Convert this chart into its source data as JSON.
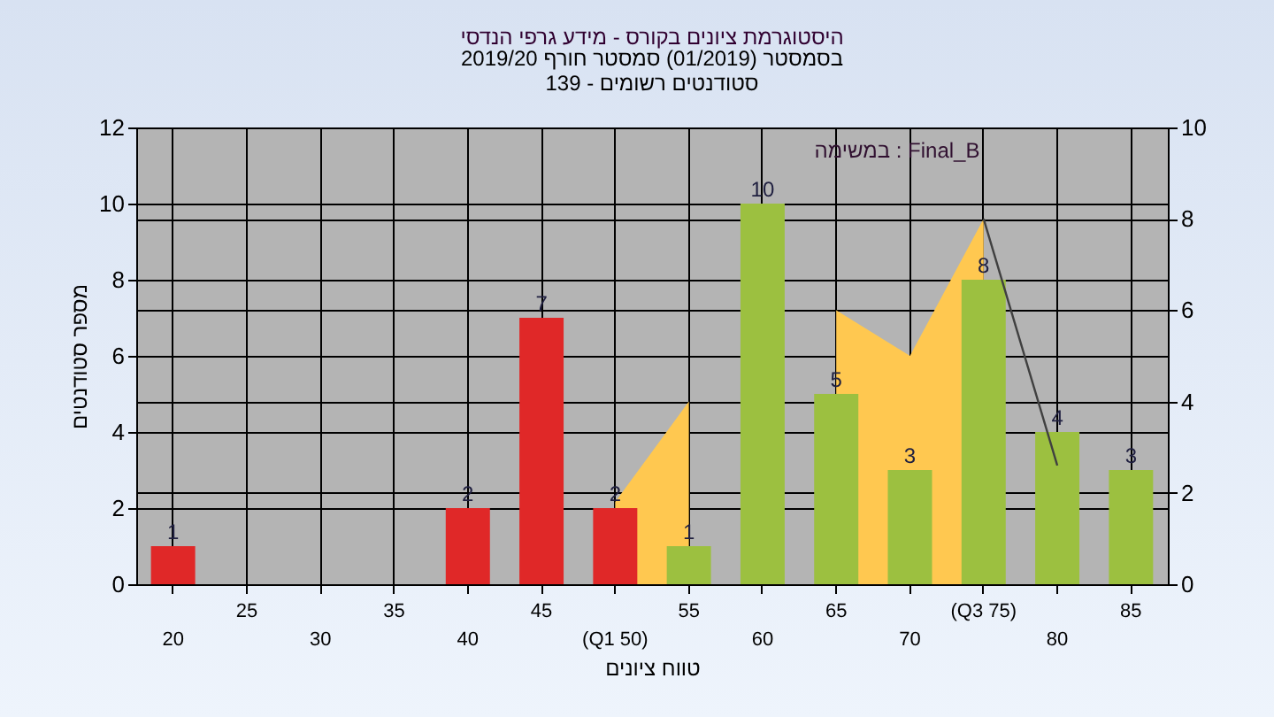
{
  "chart_data": {
    "type": "bar",
    "title": "היסטוגרמת ציונים בקורס - מידע גרפי הנדסי",
    "subtitle": "בסמסטר  (01/2019)  סמסטר חורף 2019/20\nסטודנטים רשומים - 139",
    "xlabel": "טווח ציונים",
    "ylabel": "מספר סטודנטים",
    "annotations": [
      "במשימה : Final_B"
    ],
    "categories": [
      "20",
      "25",
      "30",
      "35",
      "40",
      "45",
      "(Q1 50)",
      "55",
      "60",
      "65",
      "70",
      "(Q3 75)",
      "80",
      "85"
    ],
    "series": [
      {
        "type": "area",
        "axis": "y2",
        "color": "#ffc850",
        "values": [
          null,
          null,
          null,
          null,
          null,
          null,
          1.8,
          4,
          null,
          6,
          5,
          8,
          null,
          null
        ]
      },
      {
        "values": [
          1,
          0,
          0,
          0,
          2,
          7,
          2,
          1,
          10,
          5,
          3,
          8,
          4,
          3
        ],
        "colors": [
          "#e02828",
          "#e02828",
          "#e02828",
          "#e02828",
          "#e02828",
          "#e02828",
          "#e02828",
          "#9cc040",
          "#9cc040",
          "#9cc040",
          "#9cc040",
          "#9cc040",
          "#9cc040",
          "#9cc040"
        ],
        "value_labels": [
          "1",
          null,
          null,
          null,
          "2",
          "7",
          "2",
          "1",
          "10",
          "5",
          "3",
          "8",
          "4",
          "3"
        ]
      },
      {
        "type": "line",
        "axis": "y2",
        "color": "#404040",
        "values": [
          null,
          null,
          null,
          null,
          null,
          null,
          null,
          null,
          null,
          null,
          null,
          8,
          2.6,
          null
        ]
      }
    ],
    "ylim": [
      0,
      12
    ],
    "yticks": [
      0,
      2,
      4,
      6,
      8,
      10,
      12
    ],
    "y2lim": [
      0,
      10
    ],
    "y2ticks": [
      0,
      2,
      4,
      6,
      8,
      10
    ],
    "grid": true,
    "legend": false
  }
}
